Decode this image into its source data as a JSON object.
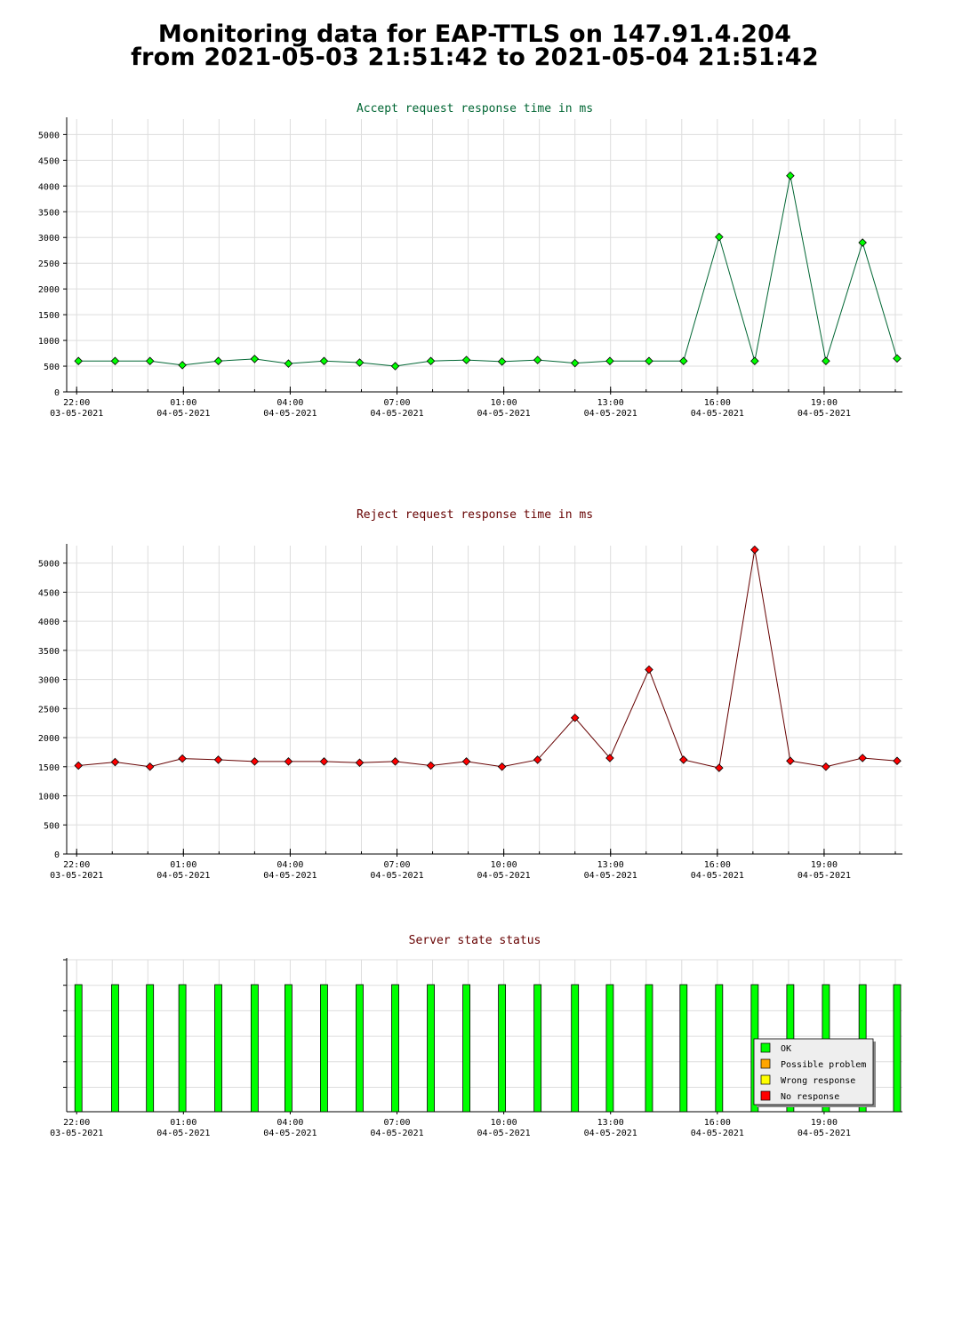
{
  "page": {
    "title_line_1": "Monitoring data for EAP-TTLS on 147.91.4.204",
    "title_line_2": "from 2021-05-03 21:51:42 to 2021-05-04 21:51:42"
  },
  "colors": {
    "accept_line": "#006633",
    "accept_marker": "#00ff00",
    "reject_line": "#660000",
    "reject_marker": "#ff0000",
    "status_ok": "#00ff00",
    "status_possible_problem": "#ffa500",
    "status_wrong_response": "#ffff00",
    "status_no_response": "#ff0000",
    "grid": "#dddddd"
  },
  "chart_data": [
    {
      "id": "accept",
      "type": "line",
      "title": "Accept request response time in ms",
      "xlim": [
        21.72,
        45.2
      ],
      "ylim": [
        0,
        5300
      ],
      "yticks": [
        0,
        500,
        1000,
        1500,
        2000,
        2500,
        3000,
        3500,
        4000,
        4500,
        5000
      ],
      "x_tick_labels": [
        {
          "x": 22,
          "time": "22:00",
          "date": "03-05-2021"
        },
        {
          "x": 25,
          "time": "01:00",
          "date": "04-05-2021"
        },
        {
          "x": 28,
          "time": "04:00",
          "date": "04-05-2021"
        },
        {
          "x": 31,
          "time": "07:00",
          "date": "04-05-2021"
        },
        {
          "x": 34,
          "time": "10:00",
          "date": "04-05-2021"
        },
        {
          "x": 37,
          "time": "13:00",
          "date": "04-05-2021"
        },
        {
          "x": 40,
          "time": "16:00",
          "date": "04-05-2021"
        },
        {
          "x": 43,
          "time": "19:00",
          "date": "04-05-2021"
        }
      ],
      "grid": true,
      "series": [
        {
          "x": [
            22.05,
            23.08,
            24.06,
            24.97,
            25.98,
            27.0,
            27.95,
            28.95,
            29.95,
            30.95,
            31.95,
            32.95,
            33.95,
            34.95,
            36.0,
            36.98,
            38.08,
            39.05,
            40.05,
            41.05,
            42.05,
            43.05,
            44.08,
            45.05
          ],
          "y": [
            600,
            600,
            600,
            520,
            600,
            640,
            550,
            600,
            570,
            500,
            600,
            620,
            590,
            620,
            560,
            600,
            600,
            600,
            3010,
            600,
            4200,
            600,
            2900,
            650
          ]
        }
      ]
    },
    {
      "id": "reject",
      "type": "line",
      "title": "Reject request response time in ms",
      "xlim": [
        21.72,
        45.2
      ],
      "ylim": [
        0,
        5300
      ],
      "yticks": [
        0,
        500,
        1000,
        1500,
        2000,
        2500,
        3000,
        3500,
        4000,
        4500,
        5000
      ],
      "x_tick_labels": [
        {
          "x": 22,
          "time": "22:00",
          "date": "03-05-2021"
        },
        {
          "x": 25,
          "time": "01:00",
          "date": "04-05-2021"
        },
        {
          "x": 28,
          "time": "04:00",
          "date": "04-05-2021"
        },
        {
          "x": 31,
          "time": "07:00",
          "date": "04-05-2021"
        },
        {
          "x": 34,
          "time": "10:00",
          "date": "04-05-2021"
        },
        {
          "x": 37,
          "time": "13:00",
          "date": "04-05-2021"
        },
        {
          "x": 40,
          "time": "16:00",
          "date": "04-05-2021"
        },
        {
          "x": 43,
          "time": "19:00",
          "date": "04-05-2021"
        }
      ],
      "grid": true,
      "series": [
        {
          "x": [
            22.05,
            23.08,
            24.06,
            24.97,
            25.98,
            27.0,
            27.95,
            28.95,
            29.95,
            30.95,
            31.95,
            32.95,
            33.95,
            34.95,
            36.0,
            36.98,
            38.08,
            39.05,
            40.05,
            41.05,
            42.05,
            43.05,
            44.08,
            45.05
          ],
          "y": [
            1520,
            1580,
            1500,
            1640,
            1620,
            1590,
            1590,
            1590,
            1570,
            1590,
            1520,
            1590,
            1500,
            1620,
            2340,
            1650,
            3170,
            1620,
            1480,
            5230,
            1600,
            1500,
            1650,
            1600
          ]
        }
      ]
    },
    {
      "id": "status",
      "type": "bar",
      "title": "Server state status",
      "xlim": [
        21.72,
        45.2
      ],
      "x_tick_labels": [
        {
          "x": 22,
          "time": "22:00",
          "date": "03-05-2021"
        },
        {
          "x": 25,
          "time": "01:00",
          "date": "04-05-2021"
        },
        {
          "x": 28,
          "time": "04:00",
          "date": "04-05-2021"
        },
        {
          "x": 31,
          "time": "07:00",
          "date": "04-05-2021"
        },
        {
          "x": 34,
          "time": "10:00",
          "date": "04-05-2021"
        },
        {
          "x": 37,
          "time": "13:00",
          "date": "04-05-2021"
        },
        {
          "x": 40,
          "time": "16:00",
          "date": "04-05-2021"
        },
        {
          "x": 43,
          "time": "19:00",
          "date": "04-05-2021"
        }
      ],
      "grid": true,
      "x": [
        22.05,
        23.08,
        24.06,
        24.97,
        25.98,
        27.0,
        27.95,
        28.95,
        29.95,
        30.95,
        31.95,
        32.95,
        33.95,
        34.95,
        36.0,
        36.98,
        38.08,
        39.05,
        40.05,
        41.05,
        42.05,
        43.05,
        44.08,
        45.05
      ],
      "states": [
        "OK",
        "OK",
        "OK",
        "OK",
        "OK",
        "OK",
        "OK",
        "OK",
        "OK",
        "OK",
        "OK",
        "OK",
        "OK",
        "OK",
        "OK",
        "OK",
        "OK",
        "OK",
        "OK",
        "OK",
        "OK",
        "OK",
        "OK",
        "OK"
      ],
      "legend": {
        "placement": "bottom-right",
        "entries": [
          {
            "label": "OK",
            "color_key": "status_ok"
          },
          {
            "label": "Possible problem",
            "color_key": "status_possible_problem"
          },
          {
            "label": "Wrong response",
            "color_key": "status_wrong_response"
          },
          {
            "label": "No response",
            "color_key": "status_no_response"
          }
        ]
      }
    }
  ]
}
